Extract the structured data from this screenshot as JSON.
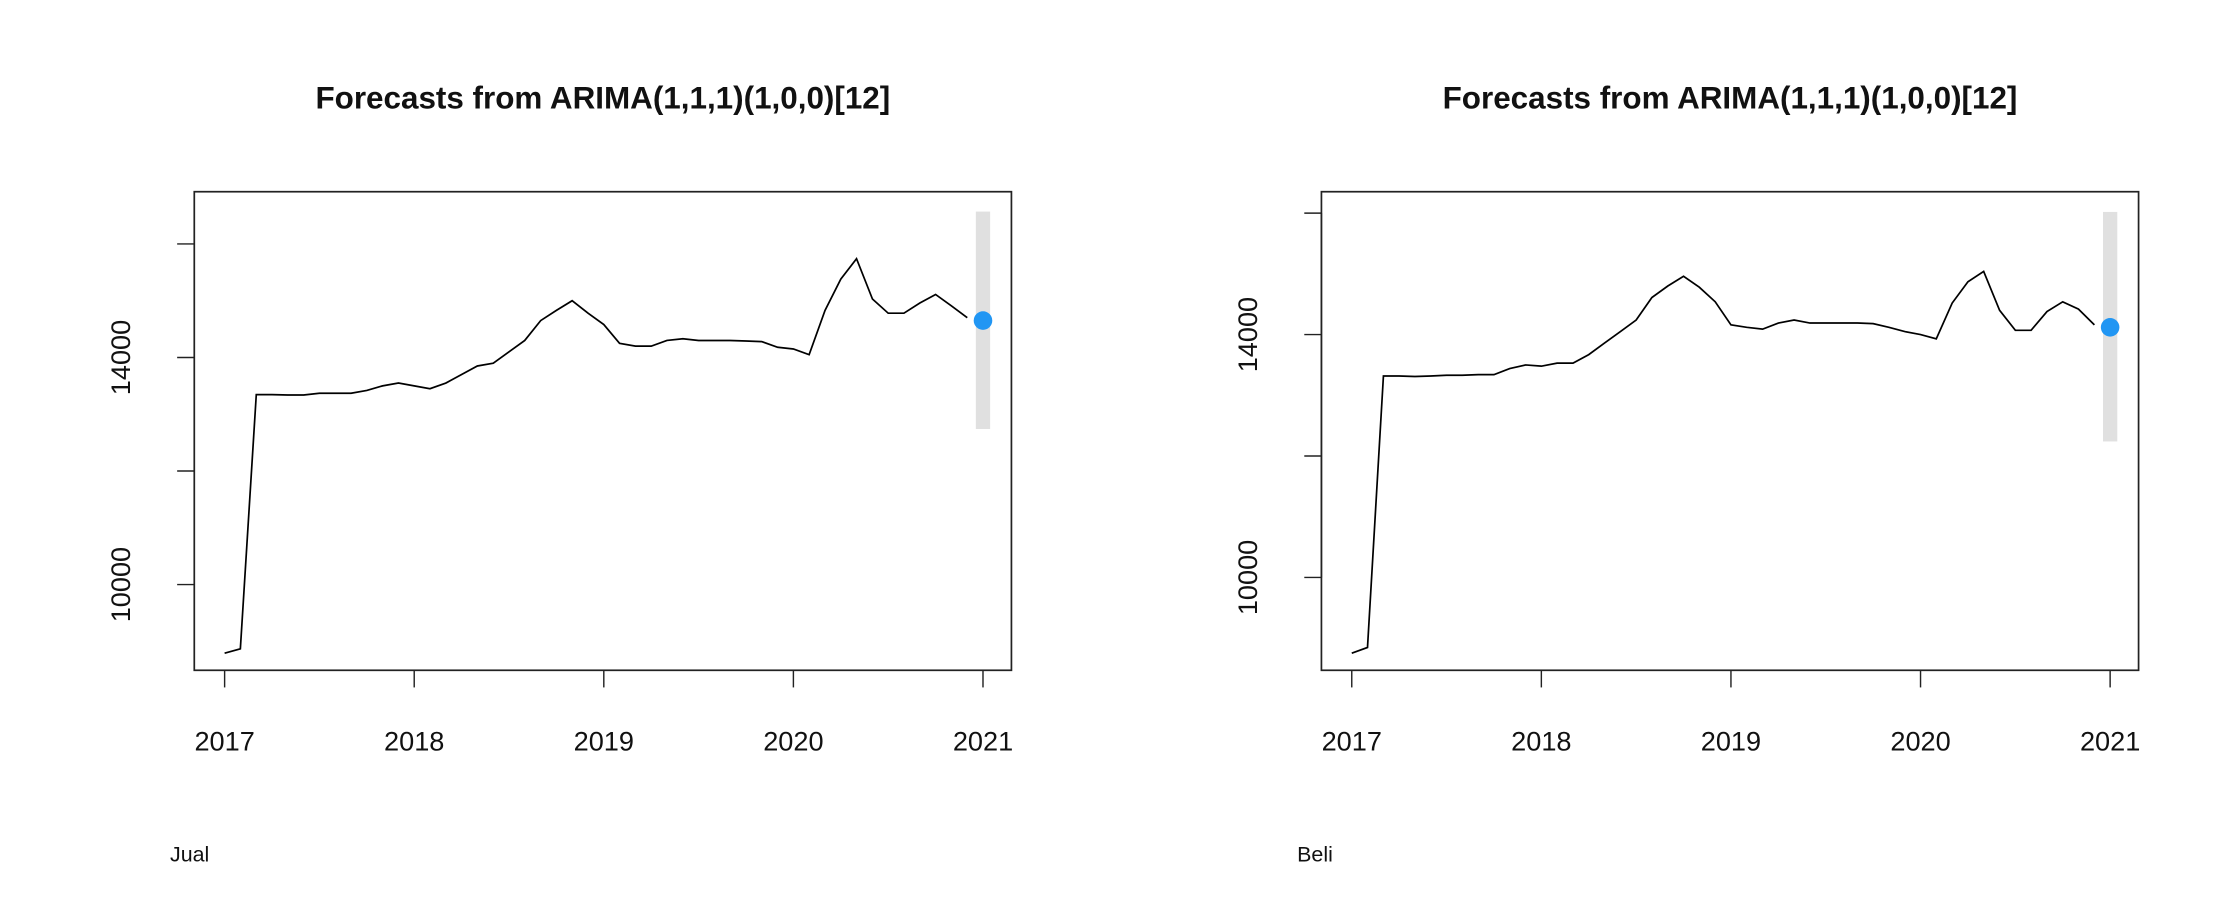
{
  "chart_data": [
    {
      "type": "line",
      "title": "Forecasts from ARIMA(1,1,1)(1,0,0)[12]",
      "caption": "Jual",
      "color": "#000000",
      "x": [
        2017,
        2017.083,
        2017.167,
        2017.25,
        2017.333,
        2017.417,
        2017.5,
        2017.583,
        2017.667,
        2017.75,
        2017.833,
        2017.917,
        2018,
        2018.083,
        2018.167,
        2018.25,
        2018.333,
        2018.417,
        2018.5,
        2018.583,
        2018.667,
        2018.75,
        2018.833,
        2018.917,
        2019,
        2019.083,
        2019.167,
        2019.25,
        2019.333,
        2019.417,
        2019.5,
        2019.583,
        2019.667,
        2019.75,
        2019.833,
        2019.917,
        2020,
        2020.083,
        2020.167,
        2020.25,
        2020.333,
        2020.417,
        2020.5,
        2020.583,
        2020.667,
        2020.75,
        2020.833,
        2020.917
      ],
      "values": [
        8792,
        8868,
        13346,
        13346,
        13340,
        13340,
        13370,
        13370,
        13370,
        13420,
        13500,
        13550,
        13500,
        13450,
        13550,
        13700,
        13850,
        13900,
        14100,
        14300,
        14650,
        14830,
        15000,
        14780,
        14580,
        14250,
        14200,
        14200,
        14300,
        14330,
        14300,
        14300,
        14300,
        14290,
        14280,
        14180,
        14150,
        14050,
        14830,
        15380,
        15740,
        15030,
        14780,
        14780,
        14960,
        15110,
        14910,
        14700
      ],
      "forecast": {
        "x": 2021,
        "value": 14650,
        "lower": 12740,
        "upper": 16570,
        "color": "#2196f3",
        "interval_color": "#e0e0e0"
      },
      "xlim": [
        2016.84,
        2021.15
      ],
      "xticks": [
        2017,
        2018,
        2019,
        2020,
        2021
      ],
      "ylim": [
        8490,
        16920
      ],
      "yticks": [
        10000,
        {
          "value": 12000
        },
        14000,
        {
          "value": 16000
        }
      ]
    },
    {
      "type": "line",
      "title": "Forecasts from ARIMA(1,1,1)(1,0,0)[12]",
      "caption": "Beli",
      "color": "#000000",
      "x": [
        2017,
        2017.083,
        2017.167,
        2017.25,
        2017.333,
        2017.417,
        2017.5,
        2017.583,
        2017.667,
        2017.75,
        2017.833,
        2017.917,
        2018,
        2018.083,
        2018.167,
        2018.25,
        2018.333,
        2018.417,
        2018.5,
        2018.583,
        2018.667,
        2018.75,
        2018.833,
        2018.917,
        2019,
        2019.083,
        2019.167,
        2019.25,
        2019.333,
        2019.417,
        2019.5,
        2019.583,
        2019.667,
        2019.75,
        2019.833,
        2019.917,
        2020,
        2020.083,
        2020.167,
        2020.25,
        2020.333,
        2020.417,
        2020.5,
        2020.583,
        2020.667,
        2020.75,
        2020.833,
        2020.917
      ],
      "values": [
        8753,
        8847,
        13318,
        13318,
        13310,
        13318,
        13330,
        13330,
        13340,
        13340,
        13440,
        13500,
        13480,
        13530,
        13530,
        13670,
        13860,
        14050,
        14240,
        14610,
        14800,
        14960,
        14780,
        14540,
        14160,
        14120,
        14090,
        14190,
        14240,
        14190,
        14190,
        14190,
        14190,
        14180,
        14120,
        14050,
        14000,
        13930,
        14520,
        14870,
        15040,
        14400,
        14070,
        14070,
        14380,
        14540,
        14420,
        14160
      ],
      "forecast": {
        "x": 2021,
        "value": 14120,
        "lower": 12240,
        "upper": 16020,
        "color": "#2196f3",
        "interval_color": "#e0e0e0"
      },
      "xlim": [
        2016.84,
        2021.15
      ],
      "xticks": [
        2017,
        2018,
        2019,
        2020,
        2021
      ],
      "ylim": [
        8471,
        16353
      ],
      "yticks": [
        10000,
        {
          "value": 12000
        },
        14000,
        {
          "value": 16000
        }
      ]
    }
  ]
}
